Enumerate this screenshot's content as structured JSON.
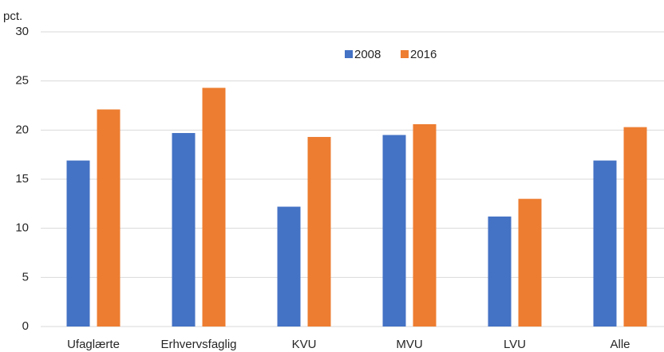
{
  "chart_data": {
    "type": "bar",
    "y_axis_label": "pct.",
    "categories": [
      "Ufaglærte",
      "Erhvervsfaglig",
      "KVU",
      "MVU",
      "LVU",
      "Alle"
    ],
    "series": [
      {
        "name": "2008",
        "color": "#4472c4",
        "values": [
          16.9,
          19.7,
          12.2,
          19.5,
          11.2,
          16.9
        ]
      },
      {
        "name": "2016",
        "color": "#ed7d31",
        "values": [
          22.1,
          24.3,
          19.3,
          20.6,
          13.0,
          20.3
        ]
      }
    ],
    "ylim": [
      0,
      30
    ],
    "yticks": [
      0,
      5,
      10,
      15,
      20,
      25,
      30
    ],
    "grid": true,
    "legend": "top"
  }
}
